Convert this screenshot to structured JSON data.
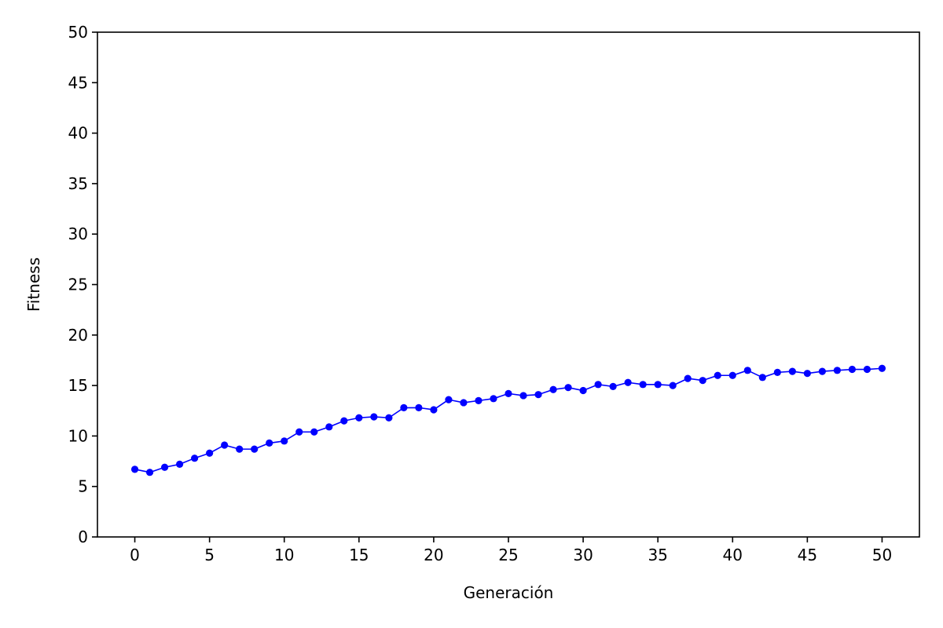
{
  "chart_data": {
    "type": "line",
    "title": "",
    "xlabel": "Generación",
    "ylabel": "Fitness",
    "xlim": [
      -2.5,
      52.5
    ],
    "ylim": [
      0,
      50
    ],
    "xticks": [
      0,
      5,
      10,
      15,
      20,
      25,
      30,
      35,
      40,
      45,
      50
    ],
    "yticks": [
      0,
      5,
      10,
      15,
      20,
      25,
      30,
      35,
      40,
      45,
      50
    ],
    "grid": false,
    "legend": "none",
    "series": [
      {
        "color": "#0000ff",
        "marker": "circle",
        "x": [
          0,
          1,
          2,
          3,
          4,
          5,
          6,
          7,
          8,
          9,
          10,
          11,
          12,
          13,
          14,
          15,
          16,
          17,
          18,
          19,
          20,
          21,
          22,
          23,
          24,
          25,
          26,
          27,
          28,
          29,
          30,
          31,
          32,
          33,
          34,
          35,
          36,
          37,
          38,
          39,
          40,
          41,
          42,
          43,
          44,
          45,
          46,
          47,
          48,
          49,
          50
        ],
        "values": [
          6.7,
          6.4,
          6.9,
          7.2,
          7.8,
          8.3,
          9.1,
          8.7,
          8.7,
          9.3,
          9.5,
          10.4,
          10.4,
          10.9,
          11.5,
          11.8,
          11.9,
          11.8,
          12.8,
          12.8,
          12.6,
          13.6,
          13.3,
          13.5,
          13.7,
          14.2,
          14.0,
          14.1,
          14.6,
          14.8,
          14.5,
          15.1,
          14.9,
          15.3,
          15.1,
          15.1,
          15.0,
          15.7,
          15.5,
          16.0,
          16.0,
          16.5,
          15.8,
          16.3,
          16.4,
          16.2,
          16.4,
          16.5,
          16.6,
          16.6,
          16.7
        ]
      }
    ]
  }
}
